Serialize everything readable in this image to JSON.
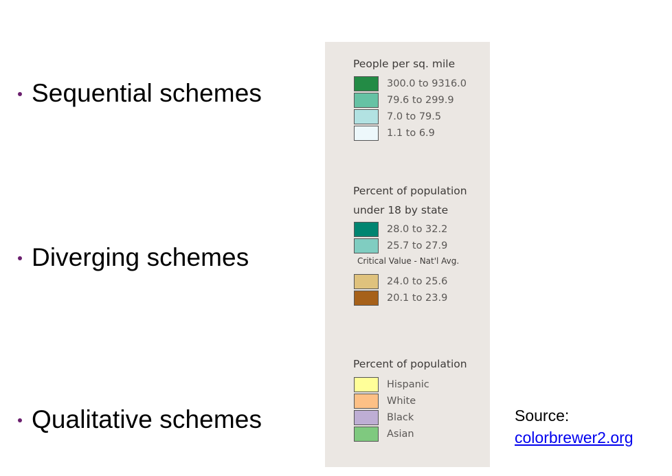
{
  "bullets": [
    {
      "text": "Sequential schemes"
    },
    {
      "text": "Diverging schemes"
    },
    {
      "text": "Qualitative schemes"
    }
  ],
  "legends": {
    "sequential": {
      "title": "People per sq. mile",
      "items": [
        {
          "label": "300.0 to 9316.0",
          "color": "#238b45"
        },
        {
          "label": "79.6 to 299.9",
          "color": "#66c2a4"
        },
        {
          "label": "7.0 to 79.5",
          "color": "#b2e2e2"
        },
        {
          "label": "1.1 to 6.9",
          "color": "#edf8fb"
        }
      ]
    },
    "diverging": {
      "title_line1": "Percent of population",
      "title_line2": "under 18 by state",
      "critical_note": "Critical Value - Nat'l Avg.",
      "items": [
        {
          "label": "28.0 to 32.2",
          "color": "#018571"
        },
        {
          "label": "25.7 to 27.9",
          "color": "#80cdc1"
        },
        {
          "label": "24.0 to 25.6",
          "color": "#dfc27d"
        },
        {
          "label": "20.1 to 23.9",
          "color": "#a6611a"
        }
      ]
    },
    "qualitative": {
      "title": "Percent of population",
      "items": [
        {
          "label": "Hispanic",
          "color": "#ffff99"
        },
        {
          "label": "White",
          "color": "#fdc086"
        },
        {
          "label": "Black",
          "color": "#beaed4"
        },
        {
          "label": "Asian",
          "color": "#7fc97f"
        }
      ]
    }
  },
  "source": {
    "label": "Source:",
    "link_text": "colorbrewer2.org"
  }
}
